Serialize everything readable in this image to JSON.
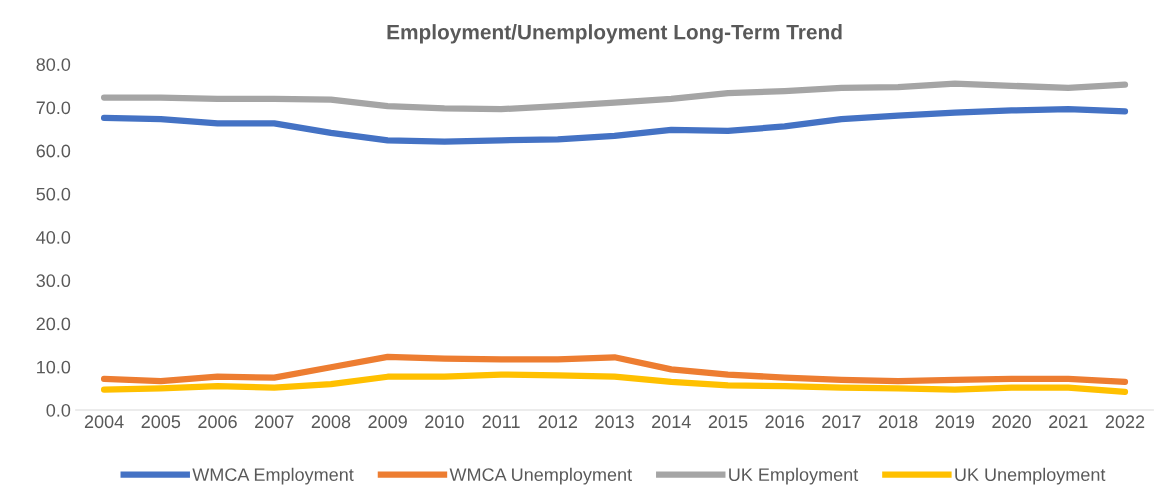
{
  "chart_data": {
    "type": "line",
    "title": "Employment/Unemployment Long-Term Trend",
    "categories": [
      "2004",
      "2005",
      "2006",
      "2007",
      "2008",
      "2009",
      "2010",
      "2011",
      "2012",
      "2013",
      "2014",
      "2015",
      "2016",
      "2017",
      "2018",
      "2019",
      "2020",
      "2021",
      "2022"
    ],
    "series": [
      {
        "name": "WMCA Employment",
        "color": "#4472c4",
        "values": [
          67.6,
          67.3,
          66.3,
          66.3,
          64.1,
          62.4,
          62.1,
          62.4,
          62.6,
          63.4,
          64.8,
          64.6,
          65.6,
          67.3,
          68.1,
          68.8,
          69.3,
          69.6,
          69.1
        ]
      },
      {
        "name": "WMCA Unemployment",
        "color": "#ed7d31",
        "values": [
          7.2,
          6.7,
          7.7,
          7.5,
          9.9,
          12.3,
          11.9,
          11.7,
          11.7,
          12.2,
          9.4,
          8.2,
          7.5,
          7.0,
          6.7,
          7.0,
          7.2,
          7.2,
          6.5
        ]
      },
      {
        "name": "UK Employment",
        "color": "#a5a5a5",
        "values": [
          72.3,
          72.3,
          72.0,
          72.0,
          71.8,
          70.3,
          69.8,
          69.6,
          70.3,
          71.1,
          72.0,
          73.3,
          73.8,
          74.5,
          74.7,
          75.5,
          75.0,
          74.5,
          75.3
        ]
      },
      {
        "name": "UK Unemployment",
        "color": "#ffc000",
        "values": [
          4.7,
          5.0,
          5.5,
          5.2,
          6.0,
          7.7,
          7.7,
          8.2,
          8.0,
          7.7,
          6.5,
          5.7,
          5.5,
          5.2,
          5.0,
          4.7,
          5.2,
          5.2,
          4.2
        ]
      }
    ],
    "ylim": [
      0,
      80
    ],
    "yticks": [
      {
        "value": 0,
        "label": "0.0"
      },
      {
        "value": 10,
        "label": "10.0"
      },
      {
        "value": 20,
        "label": "20.0"
      },
      {
        "value": 30,
        "label": "30.0"
      },
      {
        "value": 40,
        "label": "40.0"
      },
      {
        "value": 50,
        "label": "50.0"
      },
      {
        "value": 60,
        "label": "60.0"
      },
      {
        "value": 70,
        "label": "70.0"
      },
      {
        "value": 80,
        "label": "80.0"
      }
    ],
    "legend": "bottom",
    "marker": "none",
    "line_style": "solid"
  }
}
